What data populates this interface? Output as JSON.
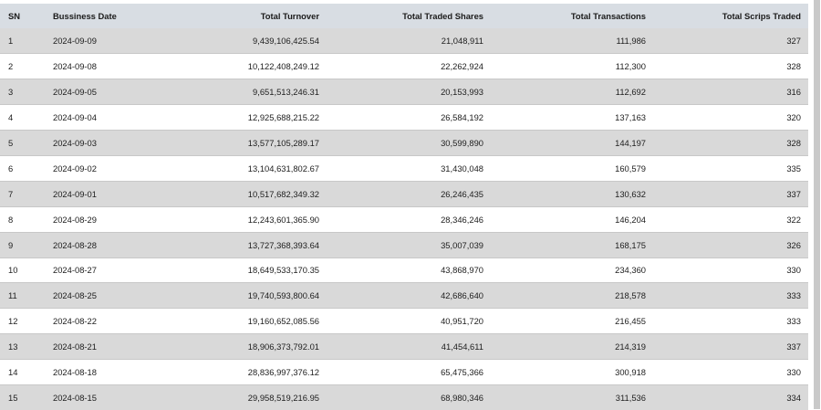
{
  "table": {
    "headers": {
      "sn": "SN",
      "date": "Bussiness Date",
      "turnover": "Total Turnover",
      "shares": "Total Traded Shares",
      "transactions": "Total Transactions",
      "scrips": "Total Scrips Traded"
    },
    "rows": [
      {
        "sn": "1",
        "date": "2024-09-09",
        "turnover": "9,439,106,425.54",
        "shares": "21,048,911",
        "transactions": "111,986",
        "scrips": "327"
      },
      {
        "sn": "2",
        "date": "2024-09-08",
        "turnover": "10,122,408,249.12",
        "shares": "22,262,924",
        "transactions": "112,300",
        "scrips": "328"
      },
      {
        "sn": "3",
        "date": "2024-09-05",
        "turnover": "9,651,513,246.31",
        "shares": "20,153,993",
        "transactions": "112,692",
        "scrips": "316"
      },
      {
        "sn": "4",
        "date": "2024-09-04",
        "turnover": "12,925,688,215.22",
        "shares": "26,584,192",
        "transactions": "137,163",
        "scrips": "320"
      },
      {
        "sn": "5",
        "date": "2024-09-03",
        "turnover": "13,577,105,289.17",
        "shares": "30,599,890",
        "transactions": "144,197",
        "scrips": "328"
      },
      {
        "sn": "6",
        "date": "2024-09-02",
        "turnover": "13,104,631,802.67",
        "shares": "31,430,048",
        "transactions": "160,579",
        "scrips": "335"
      },
      {
        "sn": "7",
        "date": "2024-09-01",
        "turnover": "10,517,682,349.32",
        "shares": "26,246,435",
        "transactions": "130,632",
        "scrips": "337"
      },
      {
        "sn": "8",
        "date": "2024-08-29",
        "turnover": "12,243,601,365.90",
        "shares": "28,346,246",
        "transactions": "146,204",
        "scrips": "322"
      },
      {
        "sn": "9",
        "date": "2024-08-28",
        "turnover": "13,727,368,393.64",
        "shares": "35,007,039",
        "transactions": "168,175",
        "scrips": "326"
      },
      {
        "sn": "10",
        "date": "2024-08-27",
        "turnover": "18,649,533,170.35",
        "shares": "43,868,970",
        "transactions": "234,360",
        "scrips": "330"
      },
      {
        "sn": "11",
        "date": "2024-08-25",
        "turnover": "19,740,593,800.64",
        "shares": "42,686,640",
        "transactions": "218,578",
        "scrips": "333"
      },
      {
        "sn": "12",
        "date": "2024-08-22",
        "turnover": "19,160,652,085.56",
        "shares": "40,951,720",
        "transactions": "216,455",
        "scrips": "333"
      },
      {
        "sn": "13",
        "date": "2024-08-21",
        "turnover": "18,906,373,792.01",
        "shares": "41,454,611",
        "transactions": "214,319",
        "scrips": "337"
      },
      {
        "sn": "14",
        "date": "2024-08-18",
        "turnover": "28,836,997,376.12",
        "shares": "65,475,366",
        "transactions": "300,918",
        "scrips": "330"
      },
      {
        "sn": "15",
        "date": "2024-08-15",
        "turnover": "29,958,519,216.95",
        "shares": "68,980,346",
        "transactions": "311,536",
        "scrips": "334"
      }
    ]
  },
  "colors": {
    "header_bg": "#d8dde3",
    "odd_row_bg": "#d9d9d9",
    "even_row_bg": "#ffffff",
    "scrollbar_thumb": "#c9c9c9"
  }
}
